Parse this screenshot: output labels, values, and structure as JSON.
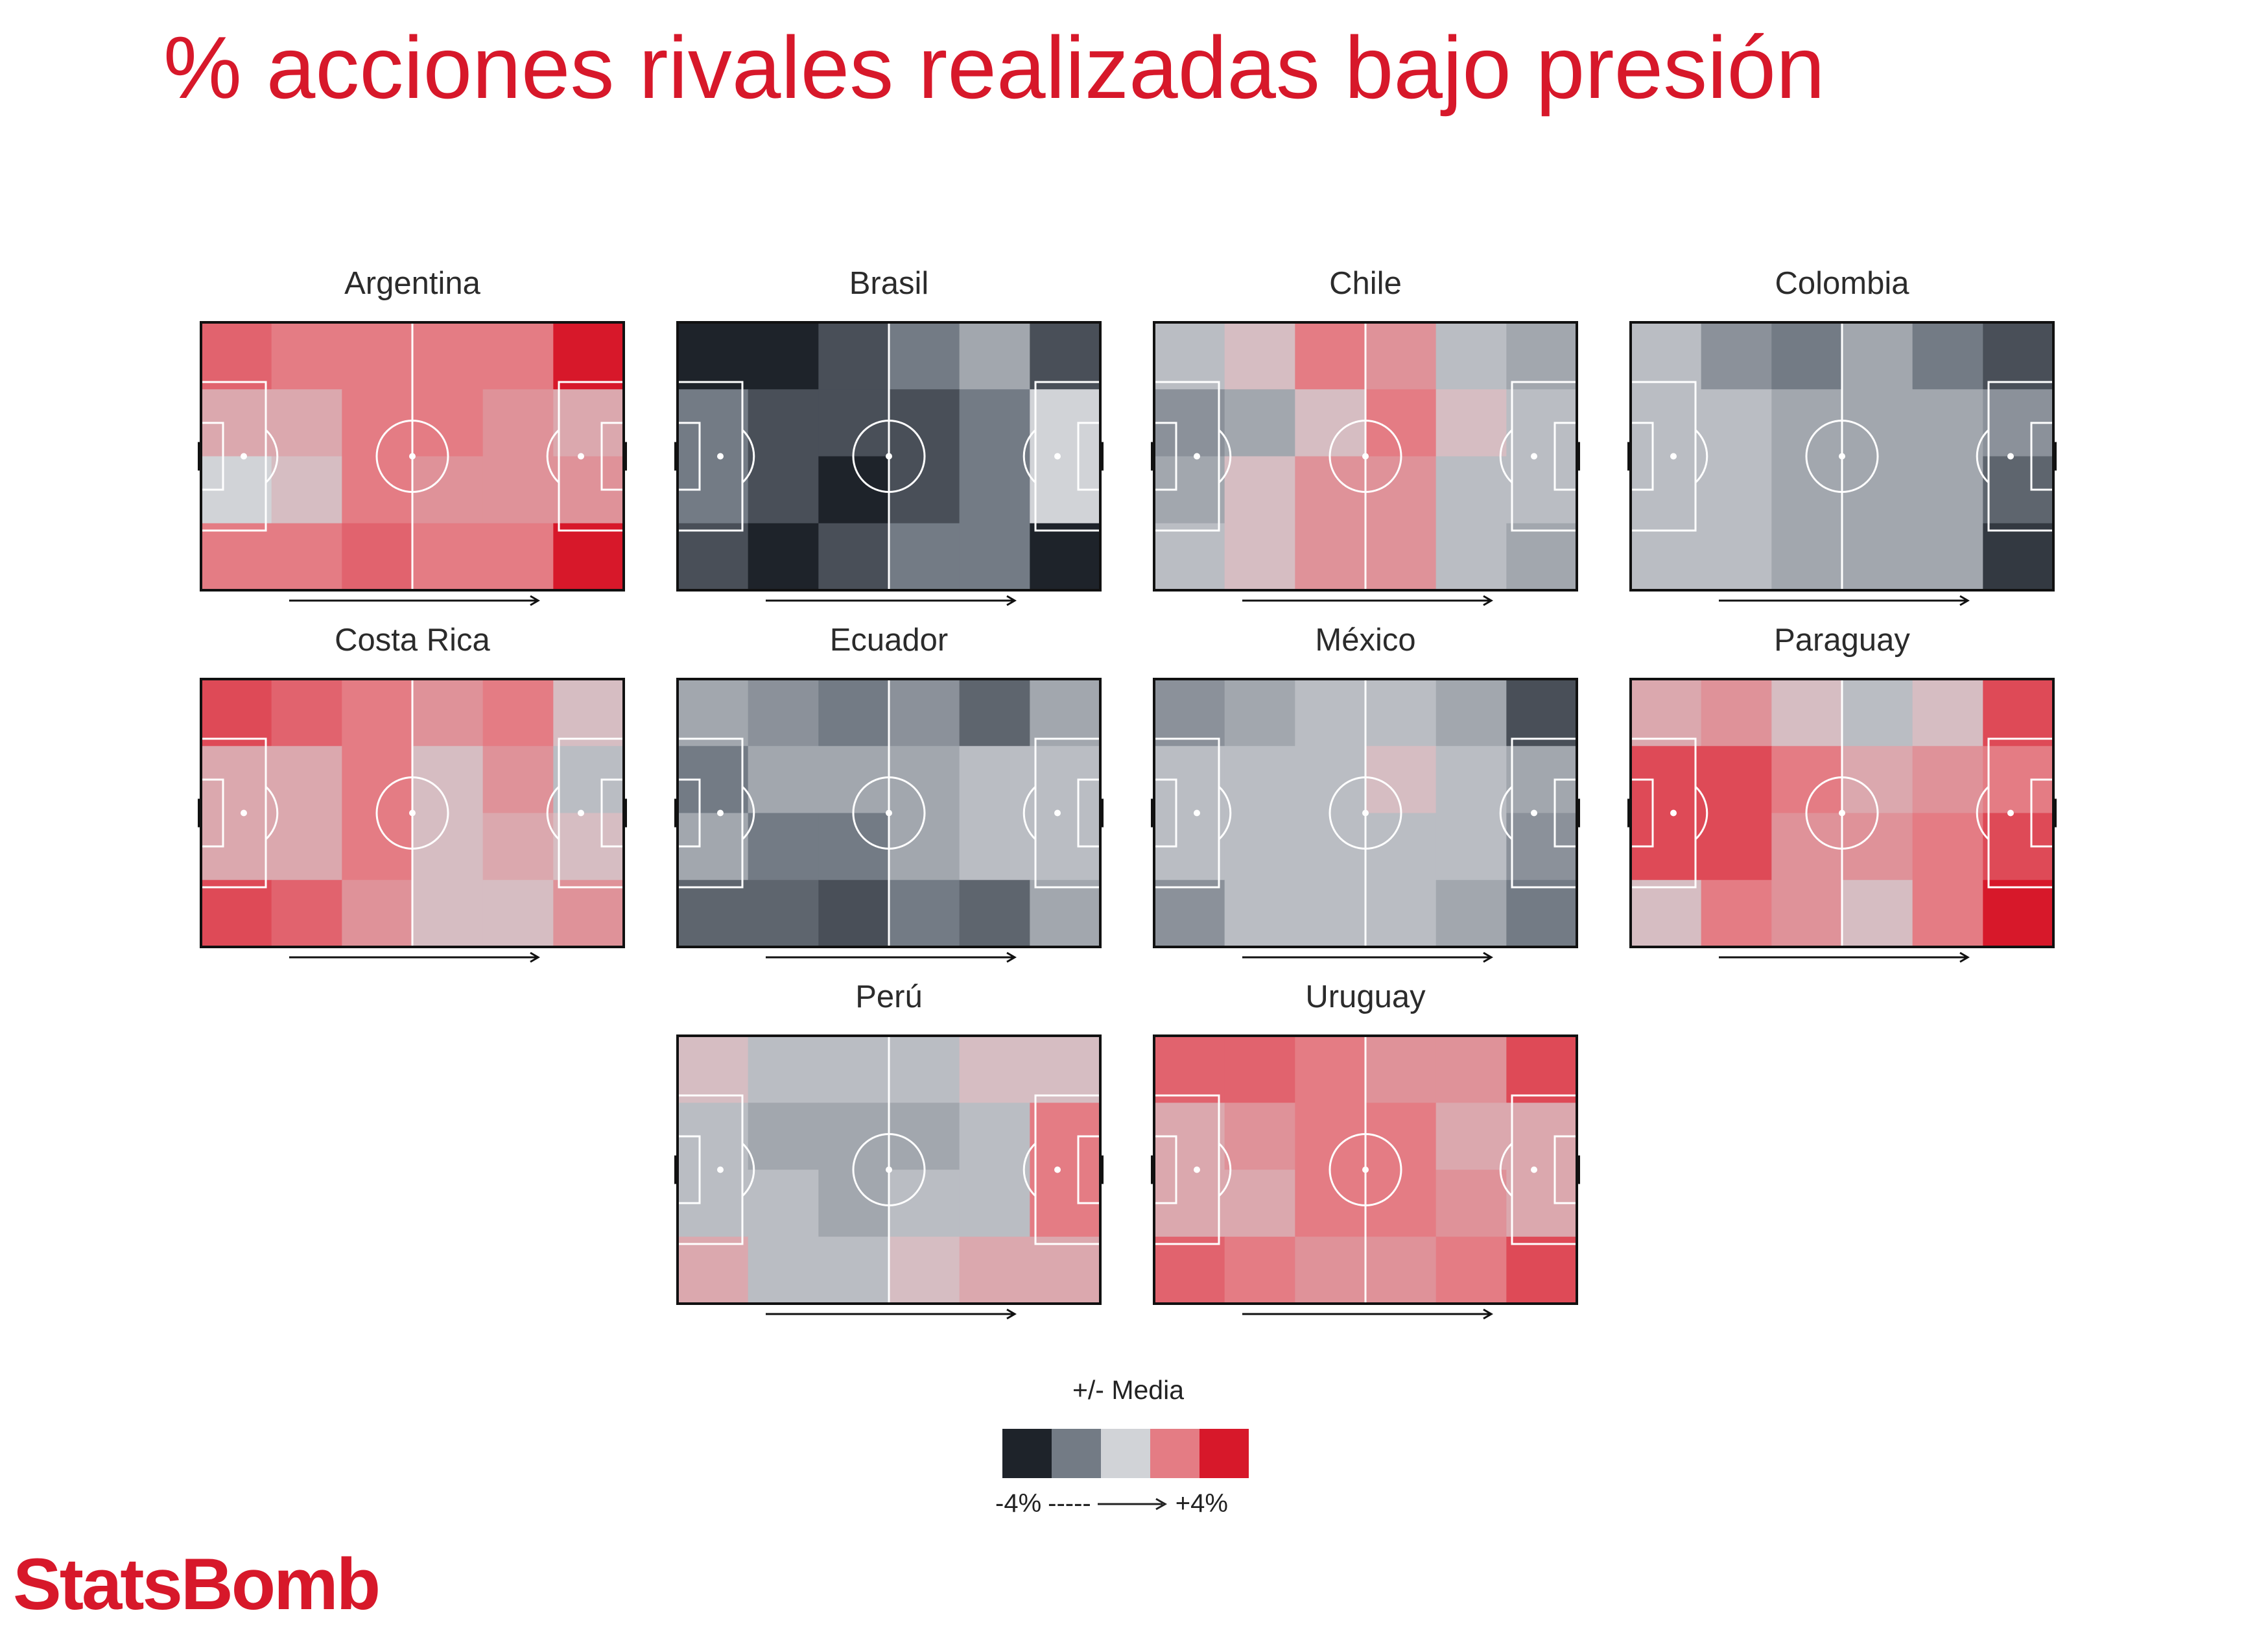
{
  "title": "% acciones rivales realizadas bajo presión",
  "chart_data": {
    "type": "heatmap",
    "title": "% acciones rivales realizadas bajo presión",
    "grid": {
      "rows": 4,
      "cols": 6
    },
    "value_unit": "% vs media",
    "value_range": [
      -4,
      4
    ],
    "attack_direction": "left-to-right",
    "teams": [
      {
        "name": "Argentina",
        "values": [
          [
            2.5,
            2,
            2,
            2,
            2,
            4
          ],
          [
            1,
            1,
            2,
            2,
            1.5,
            1
          ],
          [
            0,
            0.5,
            2,
            1.5,
            1.5,
            1.5
          ],
          [
            2,
            2,
            2.5,
            2,
            2,
            4
          ]
        ]
      },
      {
        "name": "Brasil",
        "values": [
          [
            -4,
            -4,
            -3,
            -2,
            -1,
            -3
          ],
          [
            -2,
            -3,
            -3,
            -3,
            -2,
            0
          ],
          [
            -2,
            -3,
            -4,
            -3,
            -2,
            0
          ],
          [
            -3,
            -4,
            -3,
            -2,
            -2,
            -4
          ]
        ]
      },
      {
        "name": "Chile",
        "values": [
          [
            -0.5,
            0.5,
            2,
            1.5,
            -0.5,
            -1
          ],
          [
            -1.5,
            -1,
            0.5,
            2,
            0.5,
            -0.5
          ],
          [
            -1,
            0.5,
            1.5,
            1.5,
            -0.5,
            -0.5
          ],
          [
            -0.5,
            0.5,
            1.5,
            1.5,
            -0.5,
            -1
          ]
        ]
      },
      {
        "name": "Colombia",
        "values": [
          [
            -0.5,
            -1.5,
            -2,
            -1,
            -2,
            -3
          ],
          [
            -0.5,
            -0.5,
            -1,
            -1,
            -1,
            -1.5
          ],
          [
            -0.5,
            -0.5,
            -1,
            -1,
            -1,
            -2.5
          ],
          [
            -0.5,
            -0.5,
            -1,
            -1,
            -1,
            -3.5
          ]
        ]
      },
      {
        "name": "Costa Rica",
        "values": [
          [
            3,
            2.5,
            2,
            1.5,
            2,
            0.5
          ],
          [
            1,
            1,
            2,
            0.5,
            1.5,
            -0.5
          ],
          [
            1,
            1,
            2,
            0.5,
            1,
            0.5
          ],
          [
            3,
            2.5,
            1.5,
            0.5,
            0.5,
            1.5
          ]
        ]
      },
      {
        "name": "Ecuador",
        "values": [
          [
            -1,
            -1.5,
            -2,
            -1.5,
            -2.5,
            -1
          ],
          [
            -2,
            -1,
            -1,
            -1,
            -0.5,
            -0.5
          ],
          [
            -1,
            -2,
            -2,
            -1,
            -0.5,
            -0.5
          ],
          [
            -2.5,
            -2.5,
            -3,
            -2,
            -2.5,
            -1
          ]
        ]
      },
      {
        "name": "México",
        "values": [
          [
            -1.5,
            -1,
            -0.5,
            -0.5,
            -1,
            -3
          ],
          [
            -0.5,
            -0.5,
            -0.5,
            0.5,
            -0.5,
            -1
          ],
          [
            -0.5,
            -0.5,
            -0.5,
            -0.5,
            -0.5,
            -1.5
          ],
          [
            -1.5,
            -0.5,
            -0.5,
            -0.5,
            -1,
            -2
          ]
        ]
      },
      {
        "name": "Paraguay",
        "values": [
          [
            1,
            1.5,
            0.5,
            -0.5,
            0.5,
            3
          ],
          [
            3,
            3,
            2,
            1,
            1.5,
            2
          ],
          [
            3,
            3,
            1.5,
            1.5,
            2,
            3
          ],
          [
            0.5,
            2,
            1.5,
            0.5,
            2,
            4
          ]
        ]
      },
      {
        "name": "Perú",
        "values": [
          [
            0.5,
            -0.5,
            -0.5,
            -0.5,
            0.5,
            0.5
          ],
          [
            -0.5,
            -1,
            -1,
            -1,
            -0.5,
            2
          ],
          [
            -0.5,
            -0.5,
            -1,
            -0.5,
            -0.5,
            2
          ],
          [
            1,
            -0.5,
            -0.5,
            0.5,
            1,
            1
          ]
        ]
      },
      {
        "name": "Uruguay",
        "values": [
          [
            2.5,
            2.5,
            2,
            1.5,
            1.5,
            3
          ],
          [
            1,
            1.5,
            2,
            2,
            1,
            1
          ],
          [
            1,
            1,
            2,
            2,
            1.5,
            1
          ],
          [
            2.5,
            2,
            1.5,
            1.5,
            2,
            3
          ]
        ]
      }
    ]
  },
  "legend": {
    "title": "+/- Media",
    "colors": [
      "#1e232a",
      "#737b85",
      "#d1d3d7",
      "#e47c84",
      "#d7182a"
    ],
    "low_label": "-4%",
    "dashes": "-----",
    "high_label": "+4%"
  },
  "logo": {
    "text": "StatsBomb"
  }
}
